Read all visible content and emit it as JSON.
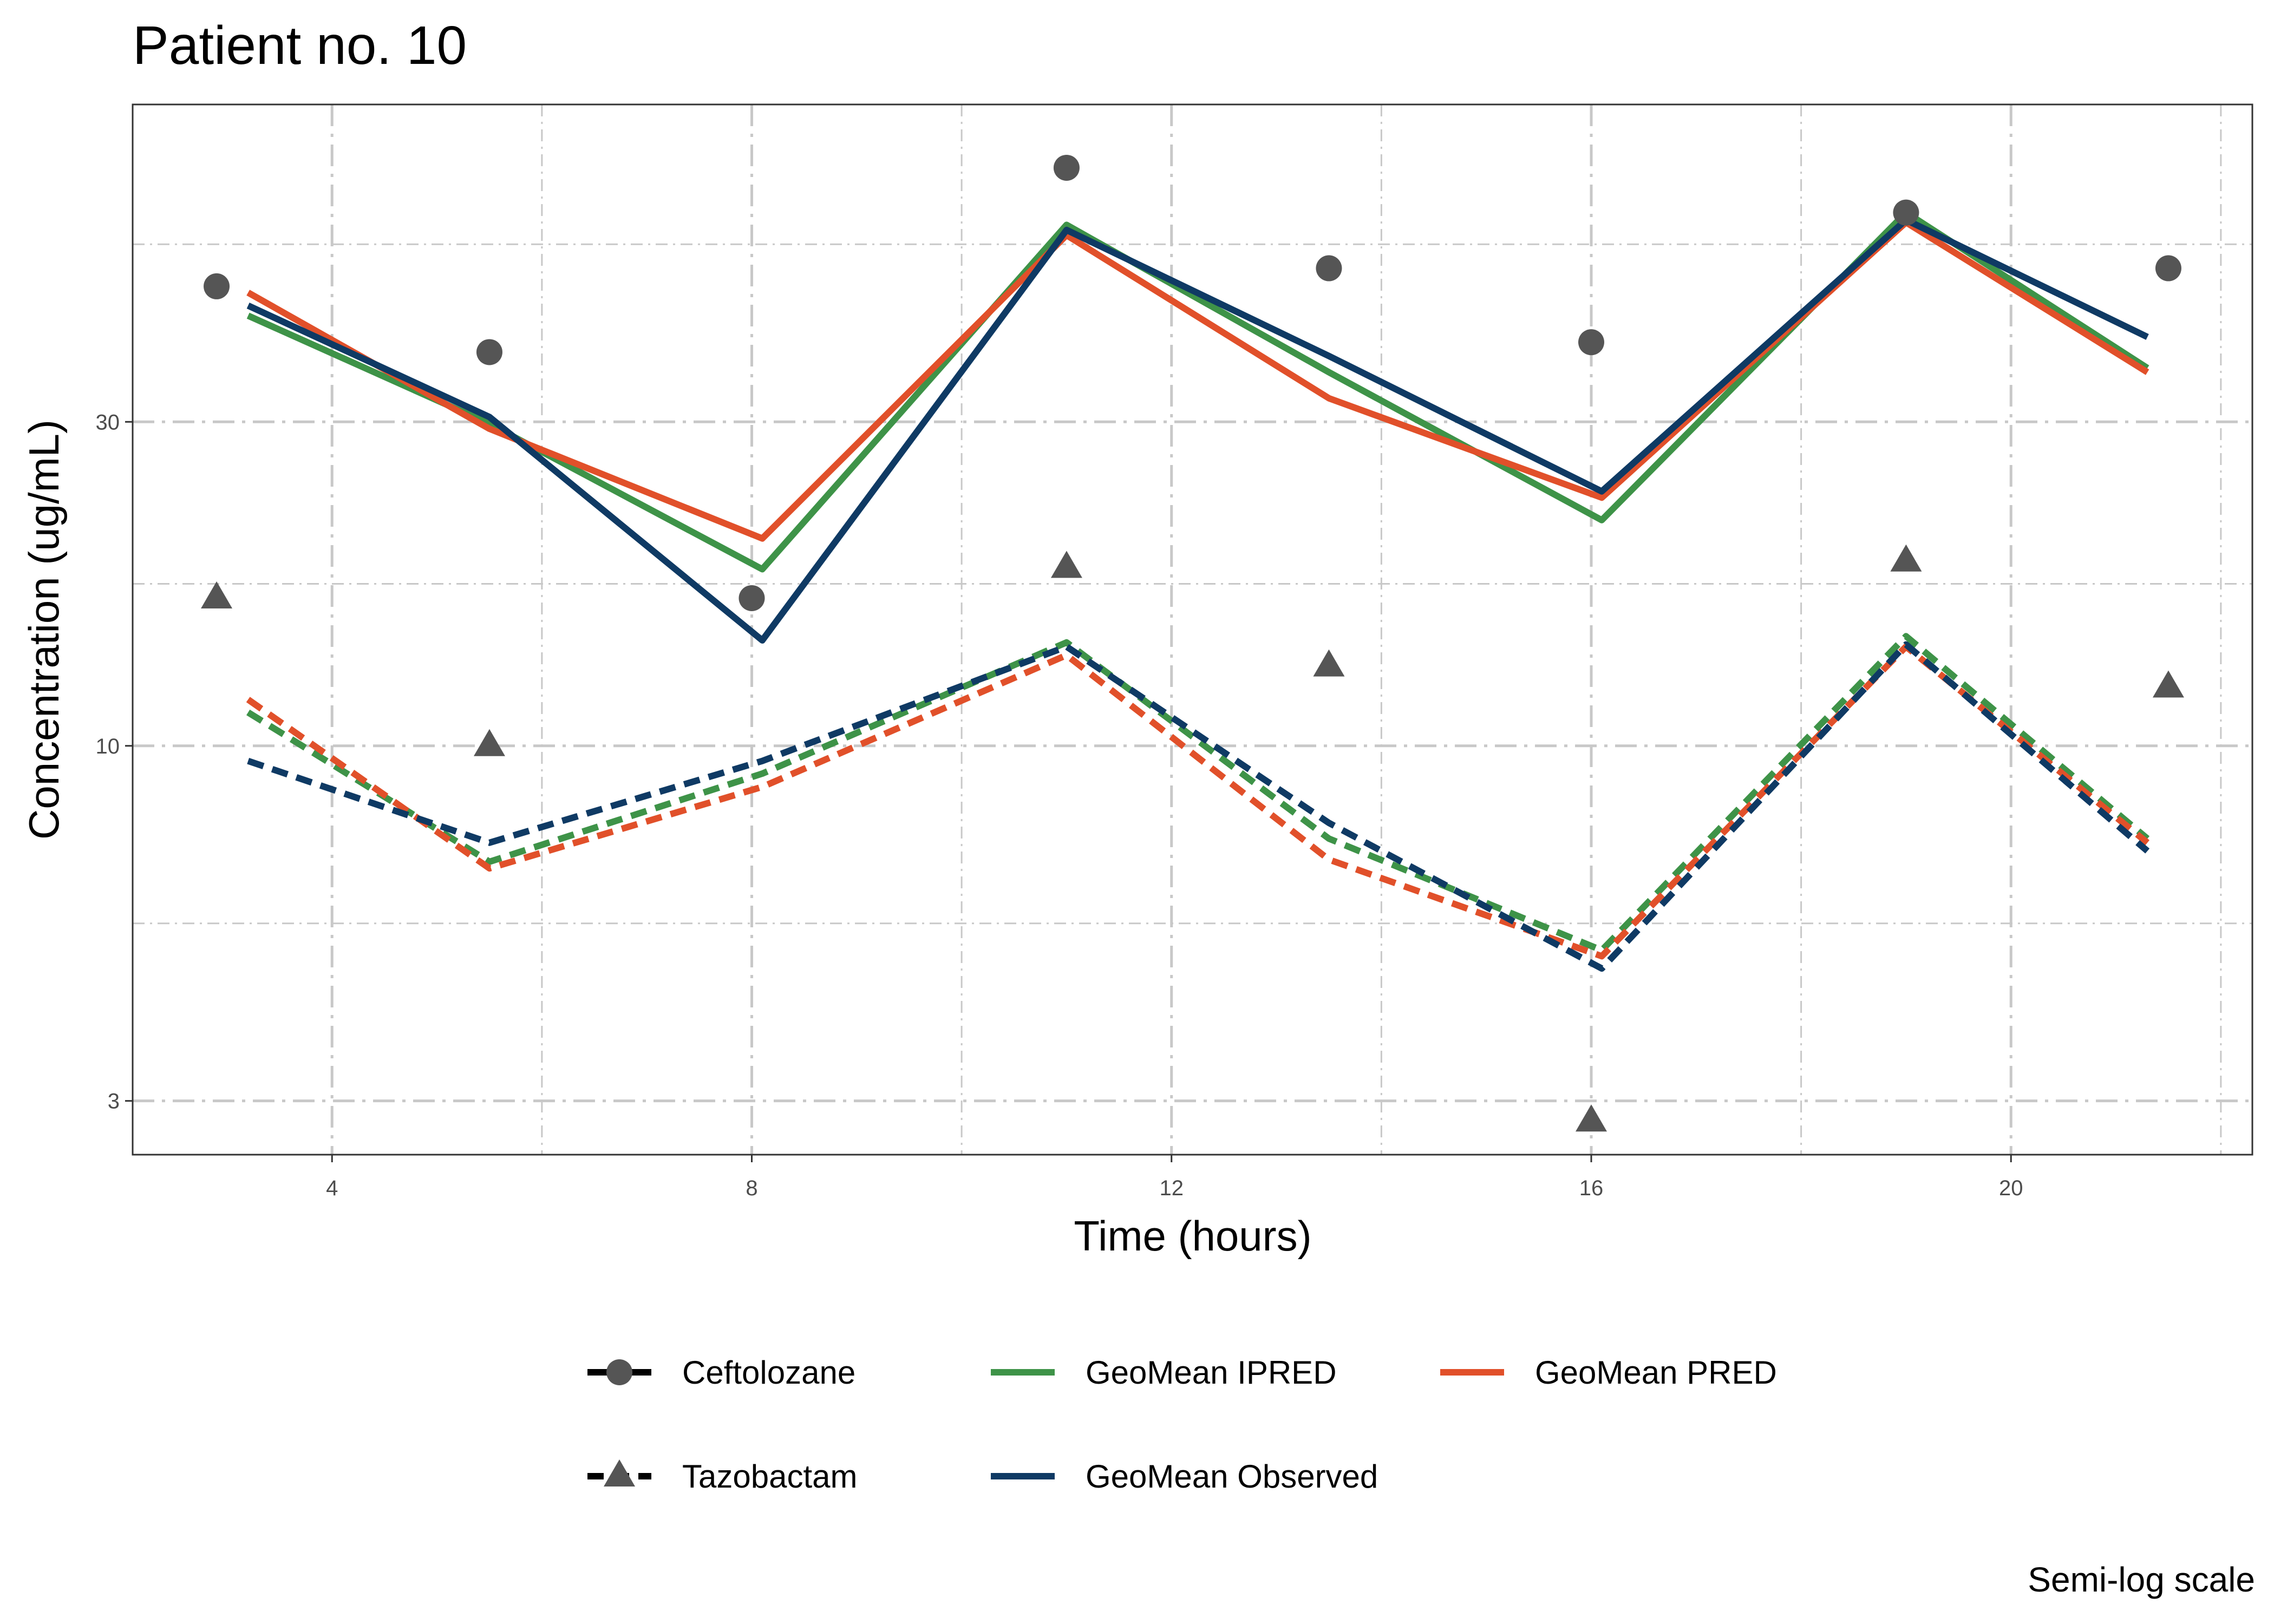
{
  "chart_data": {
    "type": "line",
    "title": "Patient no. 10",
    "xlabel": "Time (hours)",
    "ylabel": "Concentration (ug/mL)",
    "caption": "Semi-log scale",
    "xlim": [
      2.1,
      22.3
    ],
    "ylim": [
      2.5,
      88
    ],
    "y_scale": "log",
    "grid": true,
    "legend_position": "bottom",
    "x_ticks": [
      4,
      8,
      12,
      16,
      20
    ],
    "x_tick_labels": [
      "4",
      "8",
      "12",
      "16",
      "20"
    ],
    "y_ticks": [
      3,
      10,
      30
    ],
    "y_tick_labels": [
      "3",
      "10",
      "30"
    ],
    "colors": {
      "ipred": "#3e9348",
      "pred": "#e1502a",
      "observed": "#0f3a64",
      "points": "#555555",
      "grid": "#c8c8c8"
    },
    "observations": [
      {
        "name": "Ceftolozane",
        "shape": "circle",
        "points": [
          {
            "x": 2.9,
            "y": 47.5
          },
          {
            "x": 5.5,
            "y": 38
          },
          {
            "x": 8.0,
            "y": 16.5
          },
          {
            "x": 11.0,
            "y": 71
          },
          {
            "x": 13.5,
            "y": 50.5
          },
          {
            "x": 16.0,
            "y": 39.3
          },
          {
            "x": 19.0,
            "y": 61
          },
          {
            "x": 21.5,
            "y": 50.5
          }
        ]
      },
      {
        "name": "Tazobactam",
        "shape": "triangle",
        "points": [
          {
            "x": 2.9,
            "y": 16.5
          },
          {
            "x": 5.5,
            "y": 10
          },
          {
            "x": 11.0,
            "y": 18.3
          },
          {
            "x": 13.5,
            "y": 13.1
          },
          {
            "x": 16.0,
            "y": 2.8
          },
          {
            "x": 19.0,
            "y": 18.7
          },
          {
            "x": 21.5,
            "y": 12.2
          }
        ]
      }
    ],
    "series": [
      {
        "name": "GeoMean IPRED",
        "drug": "Ceftolozane",
        "dash": "solid",
        "color_key": "ipred",
        "x": [
          3.2,
          5.5,
          8.1,
          11.0,
          13.5,
          16.1,
          19.0,
          21.3
        ],
        "y": [
          43,
          29.8,
          18.2,
          58.5,
          35.5,
          21.5,
          61,
          36
        ]
      },
      {
        "name": "GeoMean PRED",
        "drug": "Ceftolozane",
        "dash": "solid",
        "color_key": "pred",
        "x": [
          3.2,
          5.5,
          8.1,
          11.0,
          13.5,
          16.1,
          19.0,
          21.3
        ],
        "y": [
          46.5,
          29.3,
          20.2,
          56.5,
          32.5,
          23.2,
          59,
          35.5
        ]
      },
      {
        "name": "GeoMean Observed",
        "drug": "Ceftolozane",
        "dash": "solid",
        "color_key": "observed",
        "x": [
          3.2,
          5.5,
          8.1,
          11.0,
          13.5,
          16.1,
          19.0,
          21.3
        ],
        "y": [
          44.5,
          30.5,
          14.3,
          57.5,
          37.5,
          23.7,
          59.5,
          40
        ]
      },
      {
        "name": "GeoMean IPRED",
        "drug": "Tazobactam",
        "dash": "dashed",
        "color_key": "ipred",
        "x": [
          3.2,
          5.5,
          8.1,
          11.0,
          13.5,
          16.1,
          19.0,
          21.3
        ],
        "y": [
          11.2,
          6.75,
          9.1,
          14.2,
          7.3,
          5.0,
          14.5,
          7.3
        ]
      },
      {
        "name": "GeoMean PRED",
        "drug": "Tazobactam",
        "dash": "dashed",
        "color_key": "pred",
        "x": [
          3.2,
          5.5,
          8.1,
          11.0,
          13.5,
          16.1,
          19.0,
          21.3
        ],
        "y": [
          11.7,
          6.6,
          8.7,
          13.6,
          6.8,
          4.9,
          14.0,
          7.2
        ]
      },
      {
        "name": "GeoMean Observed",
        "drug": "Tazobactam",
        "dash": "dashed",
        "color_key": "observed",
        "x": [
          3.2,
          5.5,
          8.1,
          11.0,
          13.5,
          16.1,
          19.0,
          21.3
        ],
        "y": [
          9.5,
          7.2,
          9.5,
          14.0,
          7.7,
          4.7,
          14.1,
          7.0
        ]
      }
    ],
    "legend": [
      {
        "label": "Ceftolozane",
        "kind": "observation",
        "shape": "circle",
        "dash": "solid",
        "color_key": "points_black"
      },
      {
        "label": "GeoMean IPRED",
        "kind": "line",
        "color_key": "ipred"
      },
      {
        "label": "GeoMean PRED",
        "kind": "line",
        "color_key": "pred"
      },
      {
        "label": "Tazobactam",
        "kind": "observation",
        "shape": "triangle",
        "dash": "dashed",
        "color_key": "points_black"
      },
      {
        "label": "GeoMean Observed",
        "kind": "line",
        "color_key": "observed"
      }
    ]
  }
}
